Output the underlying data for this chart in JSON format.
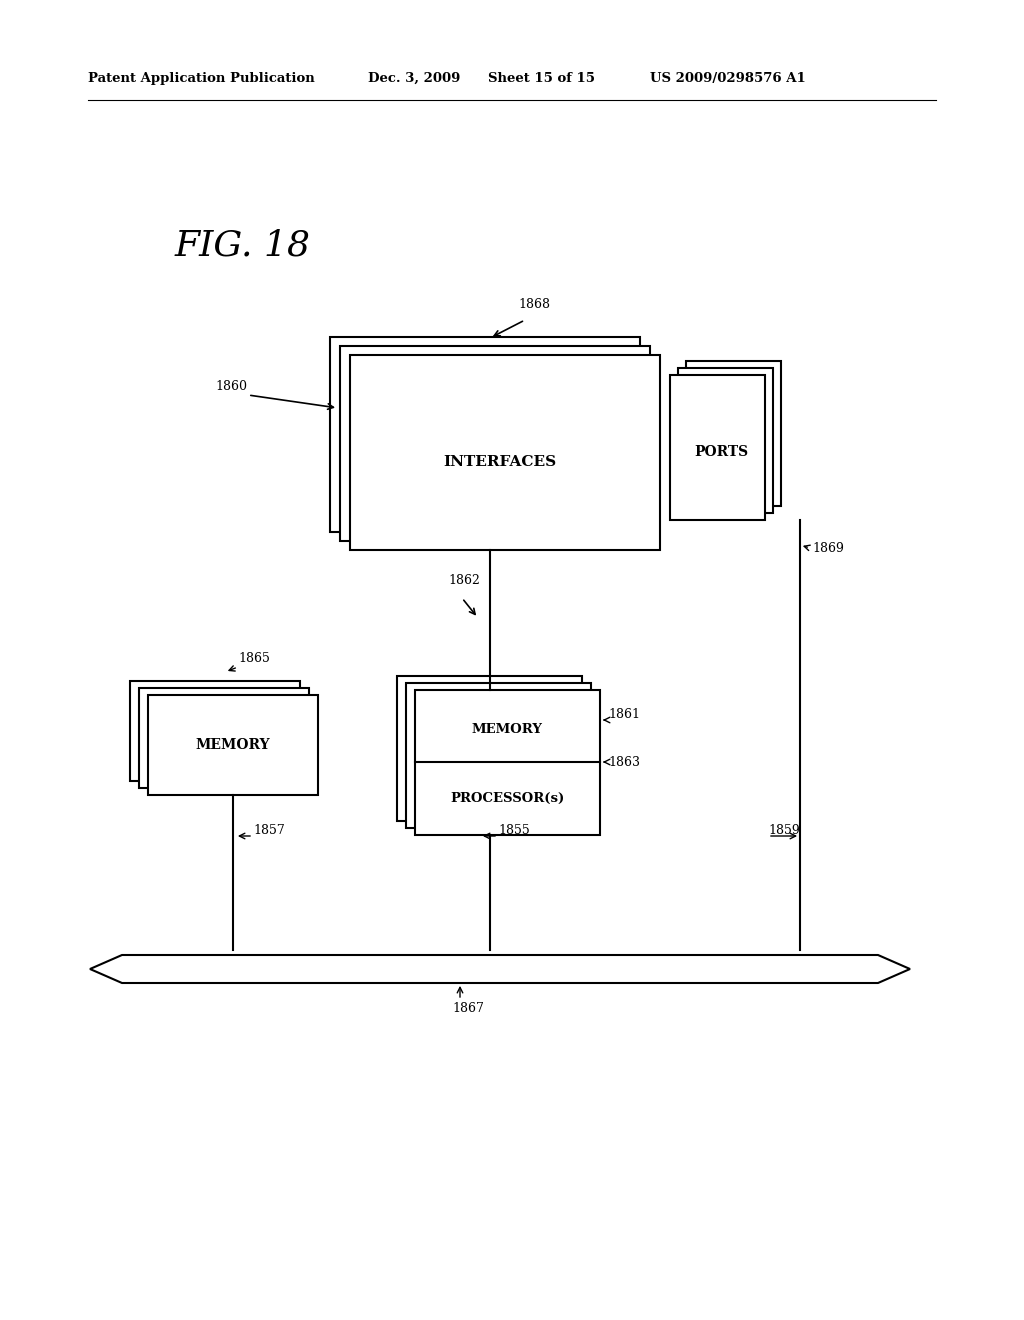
{
  "bg_color": "#ffffff",
  "header_text": "Patent Application Publication",
  "header_date": "Dec. 3, 2009",
  "header_sheet": "Sheet 15 of 15",
  "header_patent": "US 2009/0298576 A1",
  "fig_label": "FIG. 18",
  "line_color": "#000000"
}
